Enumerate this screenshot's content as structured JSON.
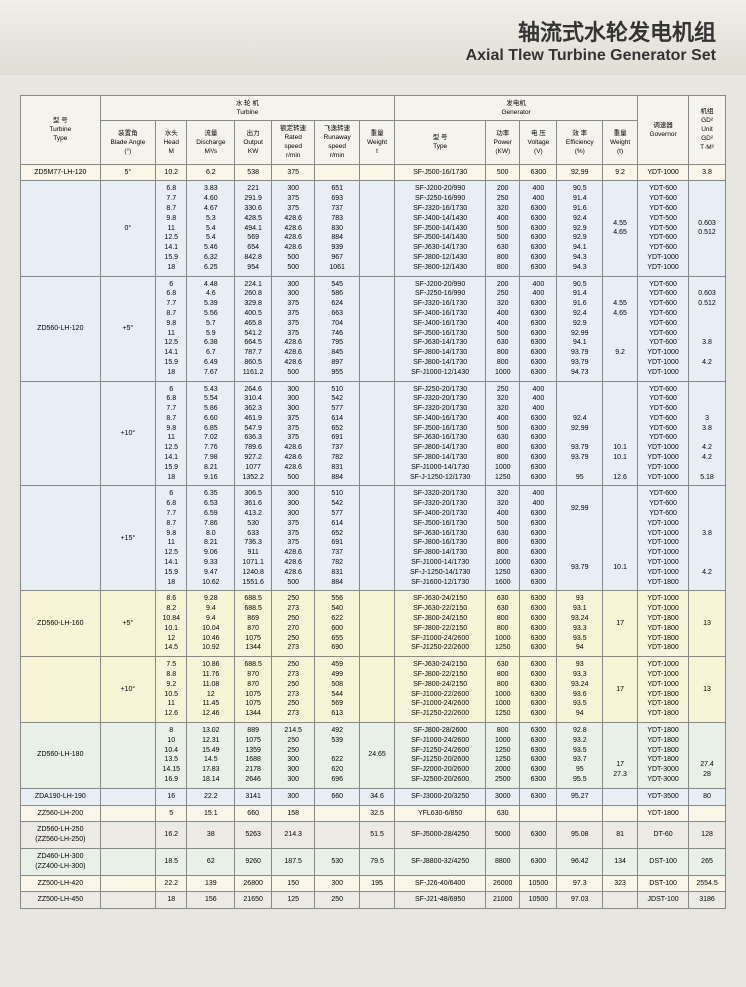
{
  "title_cn": "轴流式水轮发电机组",
  "title_en": "Axial Tlew Turbine Generator Set",
  "headers": {
    "turbine_type": "型 号\nTurbine\nType",
    "turbine": "水 轮 机\nTurbine",
    "generator": "发电机\nGenerator",
    "governor": "调速器\nGovernor",
    "gd2": "机组\nGD²\nUnit\nGD²\nT·M²",
    "blade": "装置角\nBlade Angle\n(°)",
    "head": "水头\nHead\nM",
    "discharge": "流量\nDischarge\nM³/s",
    "output": "出力\nOutput\nKW",
    "rated": "额定转速\nRated\nspeed\nr/min",
    "runaway": "飞逸转速\nRunaway\nspeed\nr/min",
    "weight_t": "重量\nWeight\nt",
    "gen_type": "型 号\nType",
    "power": "功率\nPower\n(KW)",
    "voltage": "电 压\nVoltage\n(V)",
    "efficiency": "效 率\nEfficiency\n(%)",
    "weight_g": "重量\nWeight\n(t)"
  },
  "rows": [
    {
      "cls": "cream",
      "tt": "ZD5M77-LH-120",
      "ba": "5°",
      "h": "10.2",
      "d": "6.2",
      "o": "538",
      "rs": "375",
      "ra": "",
      "wt": "",
      "gt": "SF-J500-16/1730",
      "p": "500",
      "v": "6300",
      "ef": "92.99",
      "wg": "9.2",
      "gov": "YDT-1000",
      "gd": "3.8"
    },
    {
      "cls": "blue",
      "tt": "",
      "ba": "0°",
      "h": "6.8\n7.7\n8.7\n9.8\n11\n12.5\n14.1\n15.9\n18",
      "d": "3.83\n4.60\n4.67\n5.3\n5.4\n5.4\n5.46\n6.32\n6.25",
      "o": "221\n291.9\n330.6\n428.5\n494.1\n569\n654\n842.8\n954",
      "rs": "300\n375\n375\n428.6\n428.6\n428.6\n428.6\n500\n500",
      "ra": "651\n693\n737\n783\n830\n884\n939\n967\n1061",
      "wt": "",
      "gt": "SF-J200-20/990\nSF-J250-16/990\nSF-J320-16/1730\nSF-J400-14/1430\nSF-J500-14/1430\nSF-J500-14/1430\nSF-J630-14/1730\nSF-J800-12/1430\nSF-J800-12/1430",
      "p": "200\n250\n320\n400\n500\n500\n630\n800\n800",
      "v": "400\n400\n6300\n6300\n6300\n6300\n6300\n6300\n6300",
      "ef": "90.5\n91.4\n91.6\n92.4\n92.9\n92.9\n94.1\n94.3\n94.3",
      "wg": "4.55\n4.65",
      "gov": "YDT-600\nYDT-600\nYDT-600\nYDT-500\nYDT-500\nYDT-600\nYDT-600\nYDT-1000\nYDT-1000",
      "gd": "0.603\n0.512"
    },
    {
      "cls": "blue",
      "tt": "ZD560-LH-120",
      "ba": "+5°",
      "h": "6\n6.8\n7.7\n8.7\n9.8\n11\n12.5\n14.1\n15.9\n18",
      "d": "4.48\n4.6\n5.39\n5.56\n5.7\n5.9\n6.38\n6.7\n6.49\n7.67",
      "o": "224.1\n260.8\n329.8\n400.5\n465.8\n541.2\n664.5\n787.7\n860.5\n1161.2",
      "rs": "300\n300\n375\n375\n375\n375\n428.6\n428.6\n428.6\n500",
      "ra": "545\n586\n624\n663\n704\n746\n795\n845\n897\n955",
      "wt": "",
      "gt": "SF-J200-20/990\nSF-J250-16/990\nSF-J320-16/1730\nSF-J400-16/1730\nSF-J400-16/1730\nSF-J500-16/1730\nSF-J630-14/1730\nSF-J800-14/1730\nSF-J800-14/1730\nSF-J1000-12/1430",
      "p": "200\n250\n320\n400\n400\n500\n630\n800\n800\n1000",
      "v": "400\n400\n6300\n6300\n6300\n6300\n6300\n6300\n6300\n6300",
      "ef": "90.5\n91.4\n91.6\n92.4\n92.9\n92.99\n94.1\n93.79\n93.79\n94.73",
      "wg": "4.55\n4.65\n\n\n\n9.2",
      "gov": "YDT-600\nYDT-600\nYDT-600\nYDT-600\nYDT-600\nYDT-600\nYDT-600\nYDT-1000\nYDT-1000\nYDT-1000",
      "gd": "0.603\n0.512\n\n\n\n3.8\n\n4.2"
    },
    {
      "cls": "blue",
      "tt": "",
      "ba": "+10°",
      "h": "6\n6.8\n7.7\n8.7\n9.8\n11\n12.5\n14.1\n15.9\n18",
      "d": "5.43\n5.54\n5.86\n6.60\n6.85\n7.02\n7.76\n7.98\n8.21\n9.16",
      "o": "264.6\n310.4\n362.3\n461.9\n547.9\n636.3\n789.6\n927.2\n1077\n1352.2",
      "rs": "300\n300\n300\n375\n375\n375\n428.6\n428.6\n428.6\n500",
      "ra": "510\n542\n577\n614\n652\n691\n737\n782\n831\n884",
      "wt": "",
      "gt": "SF-J250-20/1730\nSF-J320-20/1730\nSF-J320-20/1730\nSF-J400-16/1730\nSF-J500-16/1730\nSF-J630-16/1730\nSF-J800-14/1730\nSF-J800-14/1730\nSF-J1000-14/1730\nSF-J-1250-12/1730",
      "p": "250\n320\n320\n400\n500\n630\n800\n800\n1000\n1250",
      "v": "400\n400\n400\n6300\n6300\n6300\n6300\n6300\n6300\n6300",
      "ef": "\n\n\n92.4\n92.99\n\n93.79\n93.79\n\n95",
      "wg": "\n\n\n\n\n\n10.1\n10.1\n\n12.6",
      "gov": "YDT-600\nYDT-600\nYDT-600\nYDT-600\nYDT-600\nYDT-600\nYDT-1000\nYDT-1000\nYDT-1000\nYDT-1000",
      "gd": "\n\n\n3\n3.8\n\n4.2\n4.2\n\n5.18"
    },
    {
      "cls": "blue",
      "tt": "",
      "ba": "+15°",
      "h": "6\n6.8\n7.7\n8.7\n9.8\n11\n12.5\n14.1\n15.9\n18",
      "d": "6.35\n6.53\n6.59\n7.86\n8.0\n8.21\n9.06\n9.33\n9.47\n10.62",
      "o": "306.5\n361.6\n413.2\n530\n633\n736.3\n911\n1071.1\n1240.8\n1551.6",
      "rs": "300\n300\n300\n375\n375\n375\n428.6\n428.6\n428.6\n500",
      "ra": "510\n542\n577\n614\n652\n691\n737\n782\n831\n884",
      "wt": "",
      "gt": "SF-J320-20/1730\nSF-J320-20/1730\nSF-J400-20/1730\nSF-J500-16/1730\nSF-J630-16/1730\nSF-J800-16/1730\nSF-J800-14/1730\nSF-J1000-14/1730\nSF-J-1250-14/1730\nSF-J1600-12/1730",
      "p": "320\n320\n400\n500\n630\n800\n800\n1000\n1250\n1600",
      "v": "400\n400\n6300\n6300\n6300\n6300\n6300\n6300\n6300\n6300",
      "ef": "92.99\n\n\n\n\n\n93.79",
      "wg": "\n\n\n\n\n\n10.1",
      "gov": "YDT-600\nYDT-600\nYDT-600\nYDT-1000\nYDT-1000\nYDT-1000\nYDT-1000\nYDT-1000\nYDT-1000\nYDT-1800",
      "gd": "\n\n\n3.8\n\n\n\n4.2"
    },
    {
      "cls": "yellow",
      "tt": "ZD560-LH-160",
      "ba": "+5°",
      "h": "8.6\n8.2\n10.84\n10.1\n12\n14.5",
      "d": "9.28\n9.4\n9.4\n10.04\n10.46\n10.92",
      "o": "688.5\n688.5\n869\n870\n1075\n1344",
      "rs": "250\n273\n250\n270\n250\n273",
      "ra": "556\n540\n622\n600\n655\n690",
      "wt": "",
      "gt": "SF-J630-24/2150\nSF-J630-22/2150\nSF-J800-24/2150\nSF-J800-22/2150\nSF-J1000-24/2600\nSF-J1250-22/2600",
      "p": "630\n630\n800\n800\n1000\n1250",
      "v": "6300\n6300\n6300\n6300\n6300\n6300",
      "ef": "93\n93.1\n93.24\n93.3\n93.5\n94",
      "wg": "17",
      "gov": "YDT-1000\nYDT-1000\nYDT-1800\nYDT-1800\nYDT-1800\nYDT-1800",
      "gd": "13"
    },
    {
      "cls": "yellow",
      "tt": "",
      "ba": "+10°",
      "h": "7.5\n8.8\n9.2\n10.5\n11\n12.6",
      "d": "10.86\n11.76\n11.08\n12\n11.45\n12.46",
      "o": "688.5\n870\n870\n1075\n1075\n1344",
      "rs": "250\n273\n250\n273\n250\n273",
      "ra": "459\n499\n508\n544\n569\n613",
      "wt": "",
      "gt": "SF-J630-24/2150\nSF-J800-22/2150\nSF-J800-24/2150\nSF-J1000-22/2600\nSF-J1000-24/2600\nSF-J1250-22/2600",
      "p": "630\n800\n800\n1000\n1000\n1250",
      "v": "6300\n6300\n6300\n6300\n6300\n6300",
      "ef": "93\n93.3\n93.24\n93.6\n93.5\n94",
      "wg": "17",
      "gov": "YDT-1000\nYDT-1000\nYDT-1000\nYDT-1800\nYDT-1800\nYDT-1800",
      "gd": "13"
    },
    {
      "cls": "green",
      "tt": "ZD560-LH-180",
      "ba": "",
      "h": "8\n10\n10.4\n13.5\n14.15\n16.9",
      "d": "13.02\n12.31\n15.49\n14.5\n17.83\n18.14",
      "o": "889\n1075\n1359\n1688\n2178\n2646",
      "rs": "214.5\n250\n250\n300\n300\n300",
      "ra": "492\n539\n\n622\n620\n696",
      "wt": "24.65",
      "gt": "SF-J800-28/2600\nSF-J1000-24/2600\nSF-J1250-24/2600\nSF-J1250-20/2600\nSF-J2000-20/2600\nSF-J2500-20/2600",
      "p": "800\n1000\n1250\n1250\n2000\n2500",
      "v": "6300\n6300\n6300\n6300\n6300\n6300",
      "ef": "92.8\n93.2\n93.5\n93.7\n95\n95.5",
      "wg": "\n\n\n17\n27.3",
      "gov": "YDT-1800\nYDT-1800\nYDT-1800\nYDT-1800\nYDT-3000\nYDT-3000",
      "gd": "\n\n\n27.4\n28"
    },
    {
      "cls": "blue",
      "tt": "ZDA190-LH-190",
      "ba": "",
      "h": "16",
      "d": "22.2",
      "o": "3141",
      "rs": "300",
      "ra": "660",
      "wt": "34.6",
      "gt": "SF-J3000-20/3250",
      "p": "3000",
      "v": "6300",
      "ef": "95.27",
      "wg": "",
      "gov": "YDT-3500",
      "gd": "80"
    },
    {
      "cls": "cream",
      "tt": "ZZ560-LH-200",
      "ba": "",
      "h": "5",
      "d": "15.1",
      "o": "660",
      "rs": "158",
      "ra": "",
      "wt": "32.5",
      "gt": "YFL630-6/850",
      "p": "630",
      "v": "",
      "ef": "",
      "wg": "",
      "gov": "YDT-1800",
      "gd": ""
    },
    {
      "cls": "gray",
      "tt": "ZD560-LH-250\n(ZZ560-LH-250)",
      "ba": "",
      "h": "16.2",
      "d": "38",
      "o": "5263",
      "rs": "214.3",
      "ra": "",
      "wt": "51.5",
      "gt": "SF-J5000-28/4250",
      "p": "5000",
      "v": "6300",
      "ef": "95.08",
      "wg": "81",
      "gov": "DT-60",
      "gd": "128"
    },
    {
      "cls": "green",
      "tt": "ZD460-LH-300\n(ZZ400-LH-300)",
      "ba": "",
      "h": "18.5",
      "d": "62",
      "o": "9260",
      "rs": "187.5",
      "ra": "530",
      "wt": "79.5",
      "gt": "SF-J8800-32/4250",
      "p": "8800",
      "v": "6300",
      "ef": "96.42",
      "wg": "134",
      "gov": "DST-100",
      "gd": "265"
    },
    {
      "cls": "cream",
      "tt": "ZZ500-LH-420",
      "ba": "",
      "h": "22.2",
      "d": "139",
      "o": "26800",
      "rs": "150",
      "ra": "300",
      "wt": "195",
      "gt": "SF-J26-40/6400",
      "p": "26000",
      "v": "10500",
      "ef": "97.3",
      "wg": "323",
      "gov": "DST-100",
      "gd": "2554.5"
    },
    {
      "cls": "gray",
      "tt": "ZZ500-LH-450",
      "ba": "",
      "h": "18",
      "d": "156",
      "o": "21650",
      "rs": "125",
      "ra": "250",
      "wt": "",
      "gt": "SF-J21-48/6950",
      "p": "21000",
      "v": "10500",
      "ef": "97.03",
      "wg": "",
      "gov": "JDST-100",
      "gd": "3186"
    }
  ]
}
